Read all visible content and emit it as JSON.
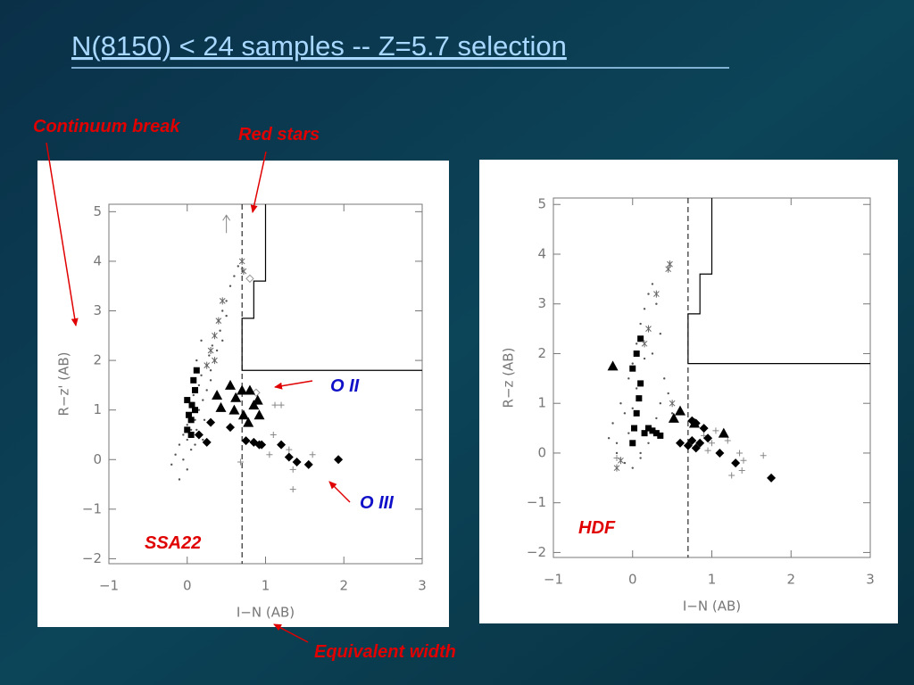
{
  "title": "N(8150)  < 24 samples  -- Z=5.7 selection",
  "annotations": {
    "continuum_break": "Continuum break",
    "red_stars": "Red stars",
    "equivalent_width": "Equivalent width",
    "o2": "O II",
    "o3": "O III"
  },
  "chart_data": [
    {
      "type": "scatter",
      "label": "SSA22",
      "x_label": "I−N (AB)",
      "y_label": "R−z' (AB)",
      "xlim": [
        -1,
        3
      ],
      "ylim": [
        -2.1,
        5.15
      ],
      "xticks": [
        {
          "value": -1,
          "label": "−1"
        },
        0,
        1,
        2,
        3
      ],
      "yticks": [
        {
          "value": -2,
          "label": "−2"
        },
        {
          "value": -1,
          "label": "−1"
        },
        0,
        1,
        2,
        3,
        4,
        5
      ],
      "cut_x": 0.7,
      "boundary": {
        "x": [
          3,
          0.7,
          0.7,
          0.85,
          0.85,
          1.0,
          1.0
        ],
        "y": [
          1.8,
          1.8,
          2.85,
          2.85,
          3.6,
          3.6,
          5.15
        ]
      },
      "series": [
        {
          "marker": "dot",
          "color": "#555555",
          "x": [
            -0.1,
            -0.05,
            0,
            0.02,
            0.05,
            0.08,
            0.1,
            0.12,
            0.15,
            0.18,
            0.2,
            0.22,
            0.25,
            0.28,
            0.3,
            0.32,
            0.35,
            0.38,
            0.4,
            0.42,
            0.45,
            0.5,
            0.55,
            0.6,
            0.65,
            -0.15,
            -0.2,
            0,
            0.05,
            0.1,
            0.15,
            0.2,
            0.1,
            0.05,
            0.0,
            -0.05,
            0.25,
            0.3,
            0.35,
            0.12,
            0.18,
            0.08,
            -0.1,
            0.45,
            0.5
          ],
          "y": [
            0.3,
            0.5,
            0.7,
            0.9,
            1.1,
            1.3,
            1.0,
            0.6,
            1.5,
            1.7,
            1.2,
            0.8,
            1.9,
            2.1,
            1.6,
            2.3,
            2.5,
            2.2,
            2.8,
            2.6,
            3.0,
            3.2,
            3.5,
            3.7,
            3.9,
            0.1,
            -0.1,
            0.4,
            0.6,
            0.8,
            1.0,
            0.4,
            0.3,
            0.2,
            -0.2,
            0.0,
            1.4,
            1.8,
            2.0,
            2.0,
            2.4,
            1.6,
            -0.4,
            2.4,
            2.9
          ]
        },
        {
          "marker": "square",
          "color": "#000000",
          "x": [
            0.0,
            0.05,
            0.1,
            0.0,
            0.05,
            0.1,
            0.08,
            0.12,
            0.02,
            0.06
          ],
          "y": [
            0.6,
            0.8,
            1.0,
            1.2,
            0.5,
            1.4,
            1.6,
            1.8,
            0.9,
            1.1
          ]
        },
        {
          "marker": "asterisk",
          "color": "#666666",
          "x": [
            0.7,
            0.72,
            0.45,
            0.4,
            0.35,
            0.3,
            0.35,
            0.25
          ],
          "y": [
            4.0,
            3.8,
            3.2,
            2.8,
            2.5,
            2.2,
            2.0,
            1.9
          ]
        },
        {
          "marker": "open-diamond",
          "color": "#999999",
          "x": [
            0.88,
            0.8
          ],
          "y": [
            1.35,
            3.65
          ]
        },
        {
          "marker": "cross",
          "color": "#888888",
          "x": [
            0.95,
            1.05,
            1.1,
            1.3,
            1.35,
            1.6,
            1.35,
            0.68,
            1.12,
            1.2
          ],
          "y": [
            0.3,
            0.1,
            0.5,
            0.2,
            -0.2,
            0.1,
            -0.6,
            -0.05,
            1.1,
            1.1
          ]
        },
        {
          "marker": "triangle",
          "color": "#000000",
          "x": [
            0.55,
            0.38,
            0.43,
            0.62,
            0.7,
            0.8,
            0.6,
            0.72,
            0.85,
            0.9,
            0.78,
            0.92
          ],
          "y": [
            1.5,
            1.3,
            1.05,
            1.25,
            1.4,
            1.4,
            1.0,
            0.9,
            1.1,
            1.2,
            0.75,
            0.9
          ]
        },
        {
          "marker": "diamond",
          "color": "#000000",
          "x": [
            0.15,
            0.25,
            0.55,
            0.75,
            0.85,
            0.92,
            1.2,
            1.3,
            1.4,
            1.55,
            1.93,
            0.95,
            0.3
          ],
          "y": [
            0.5,
            0.35,
            0.65,
            0.38,
            0.35,
            0.3,
            0.3,
            0.05,
            -0.05,
            -0.1,
            0,
            0.3,
            0.75
          ]
        },
        {
          "marker": "arrow",
          "color": "#888888",
          "x": [
            0.5
          ],
          "y": [
            4.75
          ]
        }
      ]
    },
    {
      "type": "scatter",
      "label": "HDF",
      "x_label": "I−N (AB)",
      "y_label": "R−z (AB)",
      "xlim": [
        -1,
        3
      ],
      "ylim": [
        -2.1,
        5.13
      ],
      "xticks": [
        {
          "value": -1,
          "label": "−1"
        },
        0,
        1,
        2,
        3
      ],
      "yticks": [
        {
          "value": -2,
          "label": "−2"
        },
        {
          "value": -1,
          "label": "−1"
        },
        0,
        1,
        2,
        3,
        4,
        5
      ],
      "cut_x": 0.7,
      "boundary": {
        "x": [
          3,
          0.7,
          0.7,
          0.85,
          0.85,
          1.0,
          1.0
        ],
        "y": [
          1.8,
          1.8,
          2.8,
          2.8,
          3.6,
          3.6,
          5.13
        ]
      },
      "series": [
        {
          "marker": "dot",
          "color": "#555555",
          "x": [
            -0.3,
            -0.25,
            -0.2,
            -0.15,
            -0.1,
            -0.05,
            0,
            0.05,
            0.1,
            0.15,
            0.2,
            0.25,
            0.3,
            0.35,
            0.4,
            0.45,
            0.5,
            -0.2,
            -0.1,
            0,
            0.1,
            0.2,
            0.3,
            0.05,
            0.15,
            0.25,
            0.35,
            0.0,
            -0.05,
            0.1
          ],
          "y": [
            0.3,
            0.6,
            0.2,
            1.0,
            0.8,
            1.5,
            1.8,
            2.2,
            2.6,
            2.9,
            3.2,
            3.4,
            3.0,
            2.4,
            1.5,
            1.2,
            0.8,
            0.0,
            -0.2,
            -0.3,
            0.0,
            0.2,
            0.7,
            1.3,
            1.9,
            2.0,
            1.0,
            0.9,
            0.4,
            -0.1
          ]
        },
        {
          "marker": "square",
          "color": "#000000",
          "x": [
            0,
            0.02,
            0.05,
            0.08,
            0.1,
            0.0,
            0.05,
            0.1,
            0.15,
            0.2,
            0.25,
            0.3,
            0.35
          ],
          "y": [
            0.2,
            0.5,
            0.8,
            1.1,
            1.4,
            1.7,
            2.0,
            2.3,
            0.4,
            0.5,
            0.45,
            0.4,
            0.35
          ]
        },
        {
          "marker": "asterisk",
          "color": "#666666",
          "x": [
            0.45,
            0.47,
            0.3,
            0.2,
            0.15,
            -0.2,
            -0.15,
            0.5
          ],
          "y": [
            3.7,
            3.8,
            3.2,
            2.5,
            2.2,
            -0.3,
            -0.15,
            1.0
          ]
        },
        {
          "marker": "cross",
          "color": "#888888",
          "x": [
            0.9,
            1.0,
            1.05,
            1.2,
            1.35,
            1.4,
            1.65,
            1.38,
            1.25,
            -0.2,
            0.95
          ],
          "y": [
            0.35,
            0.2,
            0.45,
            0.25,
            0.0,
            -0.15,
            -0.05,
            -0.35,
            -0.45,
            -0.1,
            0.05
          ]
        },
        {
          "marker": "triangle",
          "color": "#000000",
          "x": [
            -0.25,
            0.6,
            0.78,
            1.15,
            0.52
          ],
          "y": [
            1.75,
            0.85,
            0.6,
            0.4,
            0.7
          ]
        },
        {
          "marker": "diamond",
          "color": "#000000",
          "x": [
            0.6,
            0.7,
            0.8,
            0.75,
            0.85,
            0.95,
            1.1,
            1.3,
            1.75,
            0.9,
            0.75,
            0.8
          ],
          "y": [
            0.2,
            0.15,
            0.1,
            0.25,
            0.2,
            0.3,
            0.0,
            -0.2,
            -0.5,
            0.5,
            0.65,
            0.6
          ]
        }
      ]
    }
  ]
}
